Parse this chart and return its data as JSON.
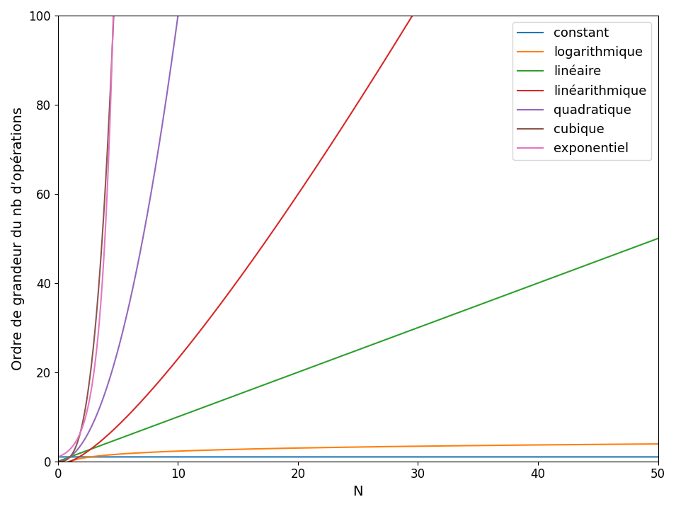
{
  "xlabel": "N",
  "ylabel": "Ordre de grandeur du nb d’opérations",
  "xlim": [
    0,
    50
  ],
  "ylim": [
    0,
    100
  ],
  "n_points": 2000,
  "n_max": 50,
  "series": [
    {
      "label": "constant",
      "color": "#1f77b4",
      "type": "constant"
    },
    {
      "label": "logarithmique",
      "color": "#ff7f0e",
      "type": "logarithmic"
    },
    {
      "label": "linéaire",
      "color": "#2ca02c",
      "type": "linear"
    },
    {
      "label": "linéarithmique",
      "color": "#d62728",
      "type": "linearithmic"
    },
    {
      "label": "quadratique",
      "color": "#9467bd",
      "type": "quadratic"
    },
    {
      "label": "cubique",
      "color": "#8c564b",
      "type": "cubic"
    },
    {
      "label": "exponentiel",
      "color": "#e377c2",
      "type": "exponential"
    }
  ],
  "linewidth": 1.5,
  "background_color": "#ffffff",
  "legend_fontsize": 13,
  "axis_label_fontsize": 14,
  "tick_fontsize": 12
}
